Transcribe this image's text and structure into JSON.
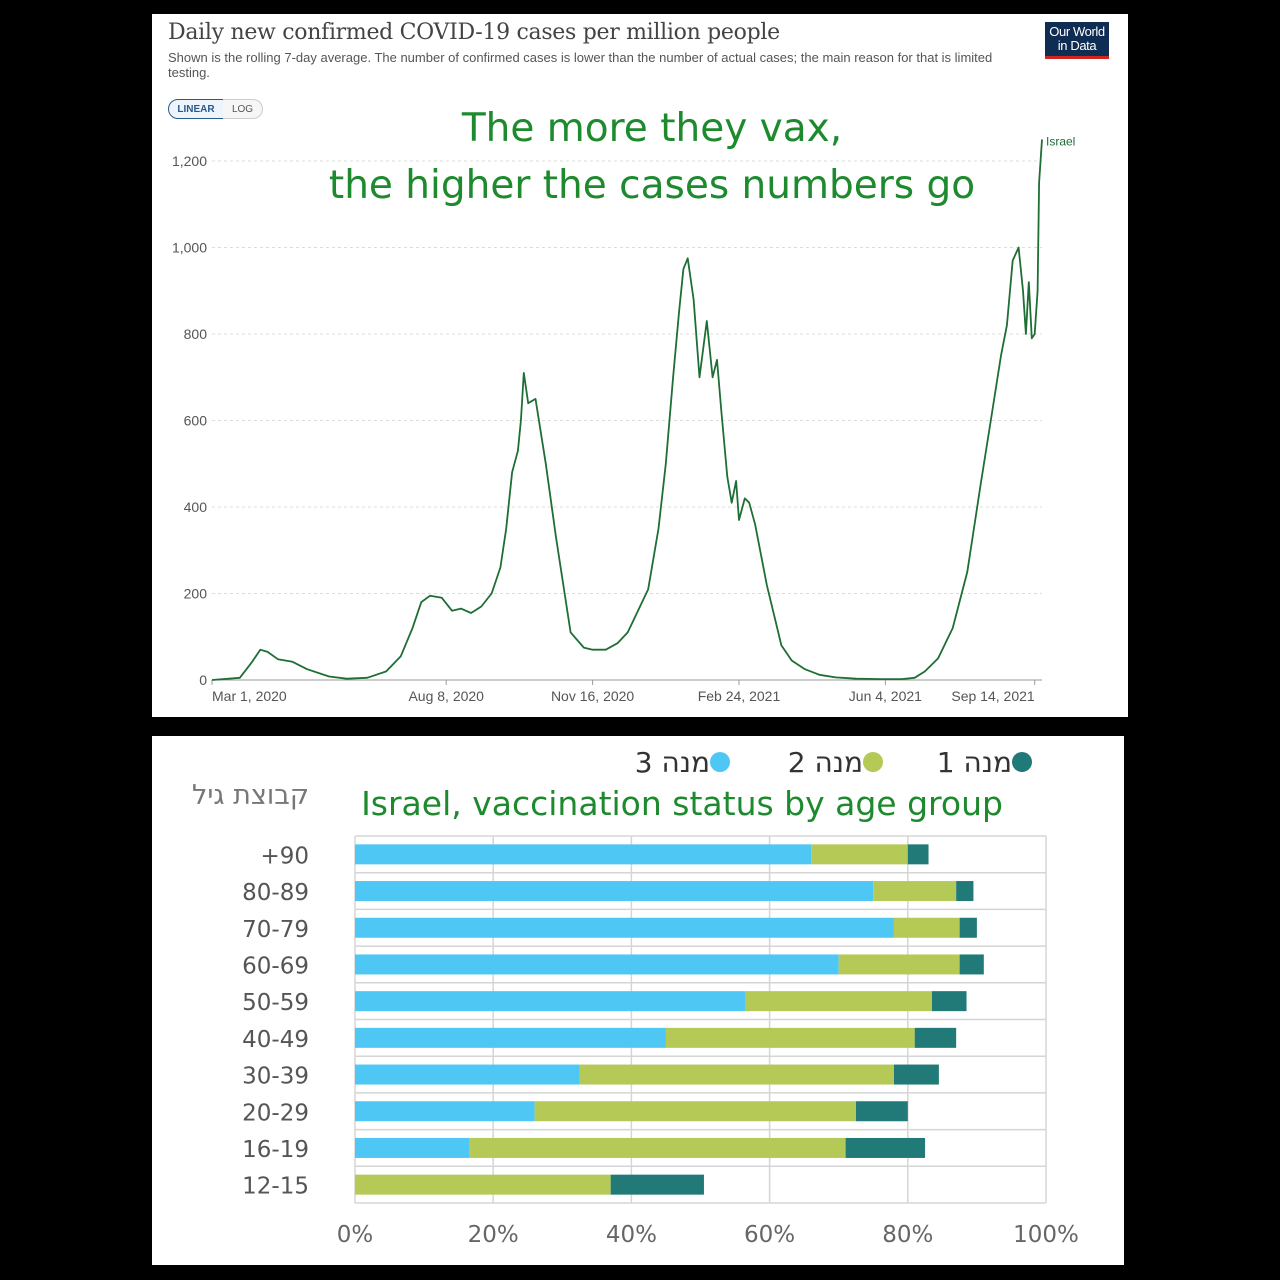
{
  "top_chart": {
    "title": "Daily new confirmed COVID-19 cases per million people",
    "subtitle": "Shown is the rolling 7-day average. The number of confirmed cases is lower than the number of actual cases; the main reason for that is limited testing.",
    "logo_line1": "Our World",
    "logo_line2": "in Data",
    "scale_buttons": [
      "LINEAR",
      "LOG"
    ],
    "overlay_line1": "The more they vax,",
    "overlay_line2": "the higher the cases numbers go",
    "line_color": "#1e6e35",
    "overlay_color": "#1d8a2e"
  },
  "bottom_chart": {
    "title": "Israel, vaccination status by age group",
    "y_axis_label": "קבוצת גיל",
    "legend": [
      {
        "label": "3 מנה",
        "color": "#4fc7f5"
      },
      {
        "label": "2 מנה",
        "color": "#b5c957"
      },
      {
        "label": "1 מנה",
        "color": "#217a78"
      }
    ]
  },
  "chart_data": [
    {
      "type": "line",
      "title": "Daily new confirmed COVID-19 cases per million people",
      "xlabel": "",
      "ylabel": "",
      "ylim": [
        0,
        1200
      ],
      "yticks": [
        0,
        200,
        400,
        600,
        800,
        1000,
        1200
      ],
      "ytick_labels": [
        "0",
        "200",
        "400",
        "600",
        "800",
        "1,000",
        "1,200"
      ],
      "x_ticks": [
        "Mar 1, 2020",
        "Aug 8, 2020",
        "Nov 16, 2020",
        "Feb 24, 2021",
        "Jun 4, 2021",
        "Sep 14, 2021"
      ],
      "grid": true,
      "series": [
        {
          "name": "Israel",
          "x": [
            "2020-03-01",
            "2020-03-20",
            "2020-03-28",
            "2020-04-03",
            "2020-04-08",
            "2020-04-15",
            "2020-04-25",
            "2020-05-05",
            "2020-05-20",
            "2020-06-01",
            "2020-06-15",
            "2020-06-28",
            "2020-07-08",
            "2020-07-16",
            "2020-07-22",
            "2020-07-28",
            "2020-08-05",
            "2020-08-12",
            "2020-08-18",
            "2020-08-25",
            "2020-09-01",
            "2020-09-08",
            "2020-09-14",
            "2020-09-18",
            "2020-09-22",
            "2020-09-26",
            "2020-09-28",
            "2020-09-30",
            "2020-10-03",
            "2020-10-08",
            "2020-10-15",
            "2020-10-22",
            "2020-11-01",
            "2020-11-10",
            "2020-11-16",
            "2020-11-25",
            "2020-12-03",
            "2020-12-10",
            "2020-12-17",
            "2020-12-24",
            "2020-12-31",
            "2021-01-05",
            "2021-01-10",
            "2021-01-14",
            "2021-01-17",
            "2021-01-20",
            "2021-01-24",
            "2021-01-28",
            "2021-02-02",
            "2021-02-06",
            "2021-02-09",
            "2021-02-12",
            "2021-02-16",
            "2021-02-19",
            "2021-02-22",
            "2021-02-24",
            "2021-02-28",
            "2021-03-03",
            "2021-03-07",
            "2021-03-15",
            "2021-03-25",
            "2021-04-01",
            "2021-04-10",
            "2021-04-20",
            "2021-05-01",
            "2021-05-15",
            "2021-06-01",
            "2021-06-15",
            "2021-06-24",
            "2021-07-01",
            "2021-07-10",
            "2021-07-20",
            "2021-07-30",
            "2021-08-08",
            "2021-08-15",
            "2021-08-22",
            "2021-08-26",
            "2021-08-30",
            "2021-09-03",
            "2021-09-06",
            "2021-09-08",
            "2021-09-10",
            "2021-09-12",
            "2021-09-14",
            "2021-09-16",
            "2021-09-17",
            "2021-09-19"
          ],
          "y": [
            0,
            5,
            40,
            70,
            65,
            48,
            42,
            25,
            8,
            3,
            5,
            20,
            55,
            120,
            180,
            195,
            190,
            160,
            165,
            155,
            170,
            200,
            260,
            350,
            480,
            530,
            600,
            710,
            640,
            650,
            500,
            330,
            110,
            75,
            70,
            70,
            85,
            110,
            160,
            210,
            350,
            500,
            700,
            850,
            950,
            975,
            880,
            700,
            830,
            700,
            740,
            620,
            470,
            410,
            460,
            370,
            420,
            410,
            360,
            220,
            80,
            45,
            25,
            12,
            6,
            3,
            2,
            2,
            5,
            20,
            50,
            120,
            250,
            450,
            600,
            750,
            820,
            970,
            1000,
            900,
            800,
            920,
            790,
            800,
            900,
            1150,
            1250
          ]
        }
      ]
    },
    {
      "type": "bar",
      "stacked": true,
      "orientation": "horizontal",
      "title": "Israel, vaccination status by age group",
      "ylabel": "קבוצת גיל",
      "xlim": [
        0,
        100
      ],
      "xticks": [
        0,
        20,
        40,
        60,
        80,
        100
      ],
      "xtick_labels": [
        "0%",
        "20%",
        "40%",
        "60%",
        "80%",
        "100%"
      ],
      "grid": true,
      "categories": [
        "+90",
        "80-89",
        "70-79",
        "60-69",
        "50-59",
        "40-49",
        "30-39",
        "20-29",
        "16-19",
        "12-15"
      ],
      "series": [
        {
          "name": "3 מנה",
          "values": [
            66,
            75,
            78,
            70,
            56.5,
            45,
            32.5,
            26,
            16.5,
            0
          ]
        },
        {
          "name": "2 מנה",
          "values": [
            14,
            12,
            9.5,
            17.5,
            27,
            36,
            45.5,
            46.5,
            54.5,
            37
          ]
        },
        {
          "name": "1 מנה",
          "values": [
            3,
            2.5,
            2.5,
            3.5,
            5,
            6,
            6.5,
            7.5,
            11.5,
            13.5
          ]
        }
      ]
    }
  ]
}
